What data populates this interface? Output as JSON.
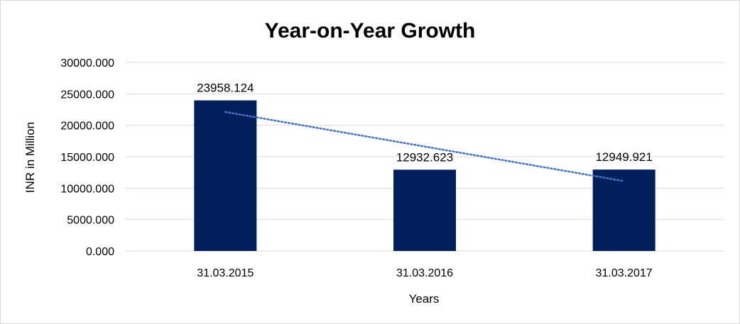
{
  "chart_data": {
    "type": "bar",
    "title": "Year-on-Year Growth",
    "xlabel": "Years",
    "ylabel": "INR in Million",
    "categories": [
      "31.03.2015",
      "31.03.2016",
      "31.03.2017"
    ],
    "values": [
      23958.124,
      12932.623,
      12949.921
    ],
    "data_labels": [
      "23958.124",
      "12932.623",
      "12949.921"
    ],
    "ylim": [
      0,
      30000
    ],
    "yticks": [
      0,
      5000,
      10000,
      15000,
      20000,
      25000,
      30000
    ],
    "ytick_labels": [
      "0.000",
      "5000.000",
      "10000.000",
      "15000.000",
      "20000.000",
      "25000.000",
      "30000.000"
    ],
    "grid": true,
    "legend": "none",
    "trendline": {
      "type": "linear",
      "style": "dotted"
    },
    "colors": {
      "bar": "#001f5b",
      "trendline": "#4472c4",
      "grid": "#d9d9d9"
    }
  }
}
